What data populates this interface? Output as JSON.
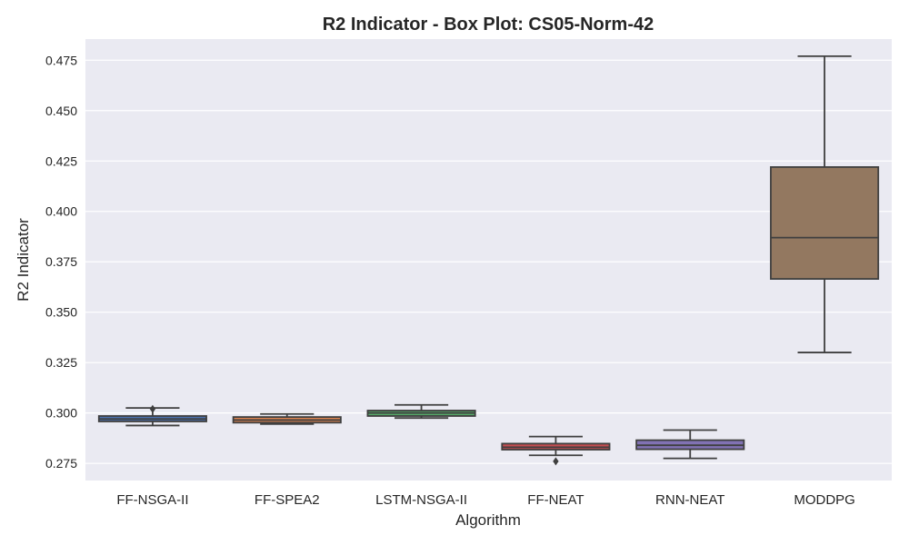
{
  "chart_data": {
    "type": "box",
    "title": "R2 Indicator - Box Plot: CS05-Norm-42",
    "xlabel": "Algorithm",
    "ylabel": "R2 Indicator",
    "ylim": [
      0.2665,
      0.4855
    ],
    "yticks": [
      "0.275",
      "0.300",
      "0.325",
      "0.350",
      "0.375",
      "0.400",
      "0.425",
      "0.450",
      "0.475"
    ],
    "grid": true,
    "categories": [
      "FF-NSGA-II",
      "FF-SPEA2",
      "LSTM-NSGA-II",
      "FF-NEAT",
      "RNN-NEAT",
      "MODDPG"
    ],
    "boxes": [
      {
        "category": "FF-NSGA-II",
        "whisker_low": 0.2938,
        "q1": 0.2958,
        "median": 0.297,
        "q3": 0.2985,
        "whisker_high": 0.3025,
        "outliers": [
          0.302
        ],
        "color": "#4c72b0"
      },
      {
        "category": "FF-SPEA2",
        "whisker_low": 0.2945,
        "q1": 0.2952,
        "median": 0.2965,
        "q3": 0.298,
        "whisker_high": 0.2995,
        "outliers": [],
        "color": "#dd8452"
      },
      {
        "category": "LSTM-NSGA-II",
        "whisker_low": 0.2975,
        "q1": 0.2985,
        "median": 0.3,
        "q3": 0.3012,
        "whisker_high": 0.304,
        "outliers": [],
        "color": "#55a868"
      },
      {
        "category": "FF-NEAT",
        "whisker_low": 0.279,
        "q1": 0.2818,
        "median": 0.283,
        "q3": 0.2848,
        "whisker_high": 0.2883,
        "outliers": [
          0.276
        ],
        "color": "#c44e52"
      },
      {
        "category": "RNN-NEAT",
        "whisker_low": 0.2775,
        "q1": 0.282,
        "median": 0.284,
        "q3": 0.2865,
        "whisker_high": 0.2915,
        "outliers": [],
        "color": "#8172b3"
      },
      {
        "category": "MODDPG",
        "whisker_low": 0.33,
        "q1": 0.3665,
        "median": 0.387,
        "q3": 0.422,
        "whisker_high": 0.477,
        "outliers": [],
        "color": "#937860"
      }
    ]
  }
}
